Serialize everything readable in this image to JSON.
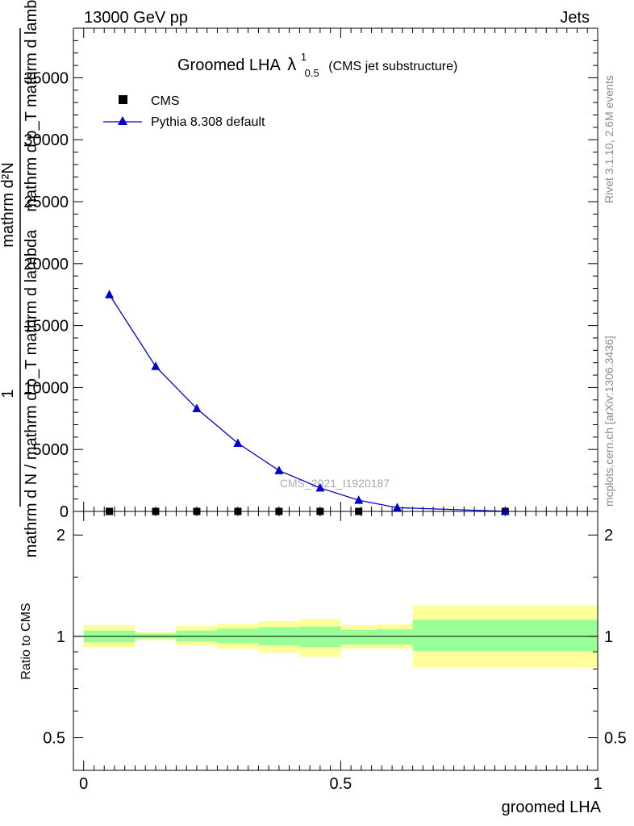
{
  "header": {
    "left": "13000 GeV pp",
    "right": "Jets"
  },
  "side": {
    "rivet": "Rivet 3.1.10,  2.6M events",
    "mcplots": "mcplots.cern.ch [arXiv:1306.3436]"
  },
  "chart_data": [
    {
      "type": "line",
      "title": "Groomed LHA",
      "title_lambda": "λ",
      "title_sup": "1",
      "title_sub": "0.5",
      "title_suffix": "(CMS jet substructure)",
      "ylabel_numerator": "mathrm d²N",
      "ylabel_denominator": "mathrm d p_T mathrm d lambda",
      "ylabel_mid": "mathrm d N / mathrm d p_T mathrm d lambda",
      "ylabel_one": "1",
      "ylim": [
        0,
        39000
      ],
      "yticks": [
        0,
        5000,
        10000,
        15000,
        20000,
        25000,
        30000,
        35000
      ],
      "ytick_labels": [
        "0",
        "5000",
        "10000",
        "15000",
        "20000",
        "25000",
        "30000",
        "35000"
      ],
      "xlim": [
        -0.02,
        1.0
      ],
      "legend_position": "top-left",
      "watermark": "CMS_2021_I1920187",
      "series": [
        {
          "name": "CMS",
          "marker": "square",
          "color": "#000000",
          "x": [
            0.05,
            0.14,
            0.22,
            0.3,
            0.38,
            0.46,
            0.535,
            0.82
          ],
          "y": [
            0,
            0,
            0,
            0,
            0,
            0,
            0,
            0
          ]
        },
        {
          "name": "Pythia 8.308 default",
          "marker": "triangle",
          "color": "#0000cc",
          "x": [
            0.05,
            0.14,
            0.22,
            0.3,
            0.38,
            0.46,
            0.535,
            0.61,
            0.82
          ],
          "y": [
            17500,
            11700,
            8300,
            5500,
            3300,
            1900,
            900,
            300,
            10
          ]
        }
      ]
    },
    {
      "type": "area",
      "ylabel": "Ratio to CMS",
      "xlabel": "groomed LHA",
      "ylim": [
        0.4,
        2.35
      ],
      "log_scale_y": true,
      "yticks": [
        0.5,
        1,
        2
      ],
      "ytick_labels": [
        "0.5",
        "1",
        "2"
      ],
      "xlim": [
        -0.02,
        1.0
      ],
      "xticks": [
        0,
        0.5,
        1
      ],
      "xtick_labels": [
        "0",
        "0.5",
        "1"
      ],
      "reference_line": 1,
      "bands": {
        "stat_color": "#99ff99",
        "total_color": "#ffff99",
        "bins": [
          {
            "x0": 0.0,
            "x1": 0.1,
            "stat": [
              0.96,
              1.04
            ],
            "total": [
              0.93,
              1.08
            ]
          },
          {
            "x0": 0.1,
            "x1": 0.18,
            "stat": [
              0.985,
              1.02
            ],
            "total": [
              0.975,
              1.03
            ]
          },
          {
            "x0": 0.18,
            "x1": 0.26,
            "stat": [
              0.965,
              1.04
            ],
            "total": [
              0.94,
              1.075
            ]
          },
          {
            "x0": 0.26,
            "x1": 0.34,
            "stat": [
              0.955,
              1.055
            ],
            "total": [
              0.92,
              1.09
            ]
          },
          {
            "x0": 0.34,
            "x1": 0.42,
            "stat": [
              0.94,
              1.065
            ],
            "total": [
              0.895,
              1.11
            ]
          },
          {
            "x0": 0.42,
            "x1": 0.5,
            "stat": [
              0.93,
              1.07
            ],
            "total": [
              0.87,
              1.125
            ]
          },
          {
            "x0": 0.5,
            "x1": 0.57,
            "stat": [
              0.945,
              1.045
            ],
            "total": [
              0.92,
              1.08
            ]
          },
          {
            "x0": 0.57,
            "x1": 0.64,
            "stat": [
              0.945,
              1.05
            ],
            "total": [
              0.92,
              1.085
            ]
          },
          {
            "x0": 0.64,
            "x1": 1.0,
            "stat": [
              0.905,
              1.12
            ],
            "total": [
              0.81,
              1.235
            ]
          }
        ]
      }
    }
  ]
}
